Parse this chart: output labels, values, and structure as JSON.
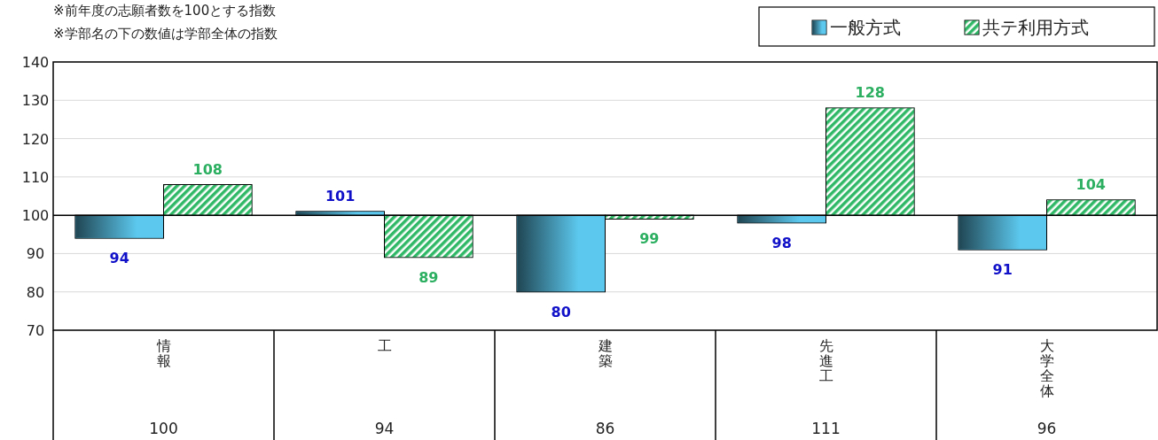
{
  "chart_data": {
    "type": "bar",
    "categories": [
      "情報",
      "工",
      "建築",
      "先進工",
      "大学全体"
    ],
    "series": [
      {
        "name": "一般方式",
        "color": "#5cc8ee",
        "base": [
          100,
          100,
          100,
          100,
          100
        ],
        "values": [
          -6,
          1,
          -20,
          -2,
          -9
        ],
        "value_labels": [
          "94",
          "101",
          "80",
          "98",
          "91"
        ]
      },
      {
        "name": "共テ利用方式",
        "color": "#2fb866",
        "base": [
          100,
          100,
          100,
          100,
          100
        ],
        "values": [
          8,
          -11,
          -1,
          28,
          4
        ],
        "value_labels": [
          "108",
          "89",
          "99",
          "128",
          "104"
        ]
      }
    ],
    "ylim": [
      70,
      140
    ],
    "yticks": [
      70,
      80,
      90,
      100,
      110,
      120,
      130,
      140
    ],
    "ref_lines": [
      {
        "axis": "y",
        "value": 100
      }
    ],
    "grid": "y",
    "legend": "top right",
    "annotations": [
      "※前年度の志願者数を100とする指数",
      "※学部名の下の数値は学部全体の指数",
      "100",
      "94",
      "86",
      "111",
      "96"
    ]
  }
}
